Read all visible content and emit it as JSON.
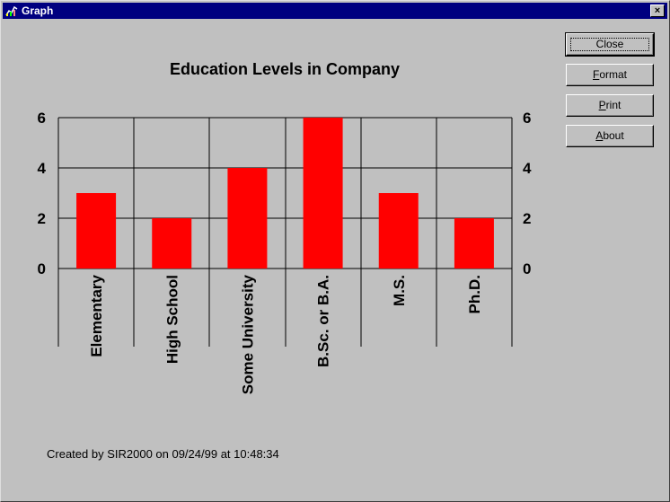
{
  "window": {
    "title": "Graph",
    "close_glyph": "×"
  },
  "buttons": {
    "close": {
      "label": "Close"
    },
    "format": {
      "pre": "",
      "mnemonic": "F",
      "post": "ormat"
    },
    "print": {
      "pre": "",
      "mnemonic": "P",
      "post": "rint"
    },
    "about": {
      "pre": "",
      "mnemonic": "A",
      "post": "bout"
    }
  },
  "footer": "Created by SIR2000 on 09/24/99 at 10:48:34",
  "colors": {
    "bar": "#ff0000",
    "background": "#c0c0c0",
    "titlebar": "#000080"
  },
  "chart_data": {
    "type": "bar",
    "title": "Education Levels in Company",
    "categories": [
      "Elementary",
      "High School",
      "Some University",
      "B.Sc. or B.A.",
      "M.S.",
      "Ph.D."
    ],
    "values": [
      3,
      2,
      4,
      6,
      3,
      2
    ],
    "ylim": [
      0,
      6
    ],
    "yticks": [
      0,
      2,
      4,
      6
    ],
    "ytick_labels": [
      "0",
      "2",
      "4",
      "6"
    ],
    "grid": true,
    "right_axis": true
  }
}
